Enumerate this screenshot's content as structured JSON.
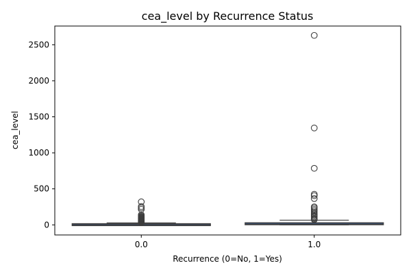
{
  "chart_data": {
    "type": "boxplot",
    "title": "cea_level by Recurrence Status",
    "xlabel": "Recurrence (0=No, 1=Yes)",
    "ylabel": "cea_level",
    "categories": [
      "0.0",
      "1.0"
    ],
    "ylim": [
      -140,
      2760
    ],
    "yticks": [
      0,
      500,
      1000,
      1500,
      2000,
      2500
    ],
    "grid": false,
    "box_color": "#3a4f6e",
    "outline_color": "#3d3d3d",
    "boxes": [
      {
        "category": "0.0",
        "q1": 1,
        "median": 2,
        "q3": 5,
        "whisker_low": 0,
        "whisker_high": 28,
        "outliers": [
          320,
          255,
          235,
          215,
          140,
          125,
          115,
          105,
          98,
          90,
          82,
          75,
          68,
          60,
          55,
          48,
          42,
          36,
          31
        ]
      },
      {
        "category": "1.0",
        "q1": 3,
        "median": 8,
        "q3": 28,
        "whisker_low": 0,
        "whisker_high": 65,
        "outliers": [
          2630,
          1345,
          785,
          425,
          405,
          365,
          250,
          235,
          215,
          195,
          175,
          155,
          140,
          125,
          110,
          92,
          80,
          72
        ]
      }
    ]
  }
}
